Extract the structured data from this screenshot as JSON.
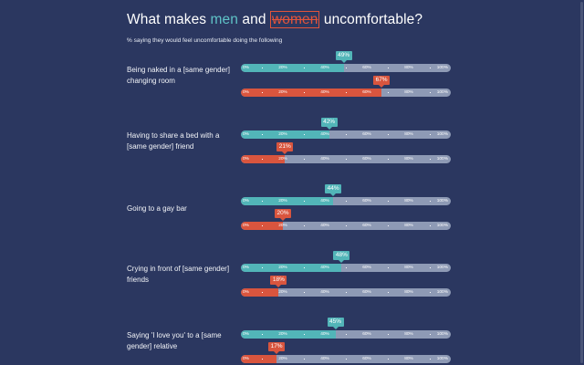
{
  "title": {
    "before": "What makes ",
    "men": "men",
    "and": " and ",
    "women": "women",
    "after": " uncomfortable?"
  },
  "subtitle": "% saying they would feel uncomfortable doing the following",
  "colors": {
    "men": "#52b5b8",
    "women": "#d9553e",
    "track": "#8e9ab5",
    "background": "#2b3760"
  },
  "chart_data": {
    "type": "bar",
    "orientation": "horizontal",
    "title": "What makes men and women uncomfortable?",
    "subtitle": "% saying they would feel uncomfortable doing the following",
    "xlim": [
      0,
      100
    ],
    "ticks": [
      "0%",
      "20%",
      "40%",
      "60%",
      "80%",
      "100%"
    ],
    "categories": [
      "Being naked in a [same gender] changing room",
      "Having to share a bed with a [same gender] friend",
      "Going to a gay bar",
      "Crying in front of [same gender] friends",
      "Saying 'I love you' to a [same gender] relative"
    ],
    "series": [
      {
        "name": "men",
        "values": [
          49,
          42,
          44,
          48,
          45
        ]
      },
      {
        "name": "women",
        "values": [
          67,
          21,
          20,
          18,
          17
        ]
      }
    ]
  }
}
